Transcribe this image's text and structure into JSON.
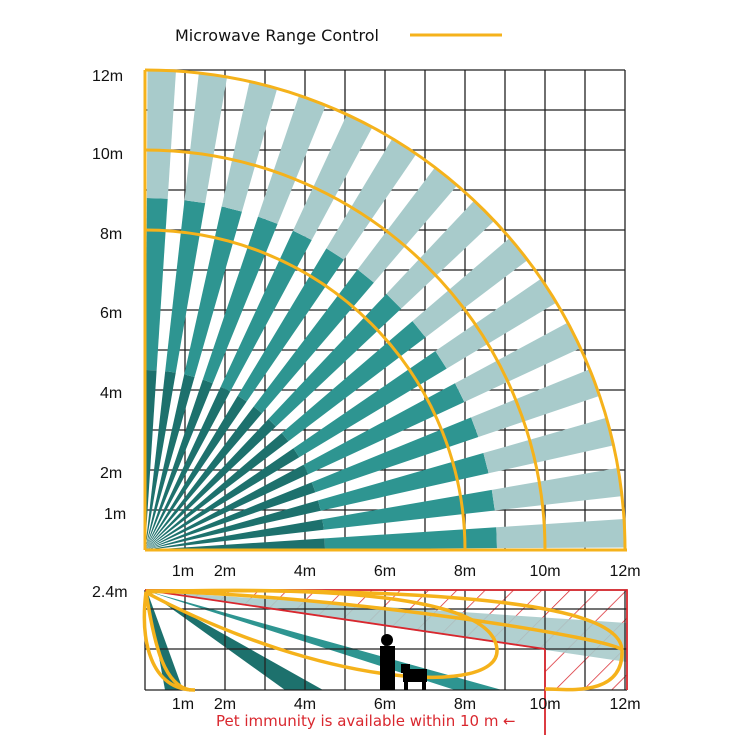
{
  "legend": {
    "label": "Microwave Range Control",
    "line_color": "#f5b21b"
  },
  "top_view": {
    "y_labels": [
      "12m",
      "10m",
      "8m",
      "6m",
      "4m",
      "2m",
      "1m"
    ],
    "x_labels": [
      "1m",
      "2m",
      "4m",
      "6m",
      "8m",
      "10m",
      "12m"
    ],
    "max_range_m": 12,
    "range_arcs_m": [
      8,
      10,
      12
    ],
    "beam_count": 15,
    "colors": {
      "inner": "#1d716d",
      "mid": "#2e9591",
      "outer": "#a8cbcb",
      "grid": "#222222",
      "arc": "#f5b21b"
    }
  },
  "side_view": {
    "height_label": "2.4m",
    "x_labels": [
      "1m",
      "2m",
      "4m",
      "6m",
      "8m",
      "10m",
      "12m"
    ],
    "note": "Pet immunity is available within 10 m",
    "note_arrow": "←",
    "pet_immunity_limit_m": 10,
    "colors": {
      "hatch": "#d9272e",
      "note": "#d9272e"
    }
  }
}
